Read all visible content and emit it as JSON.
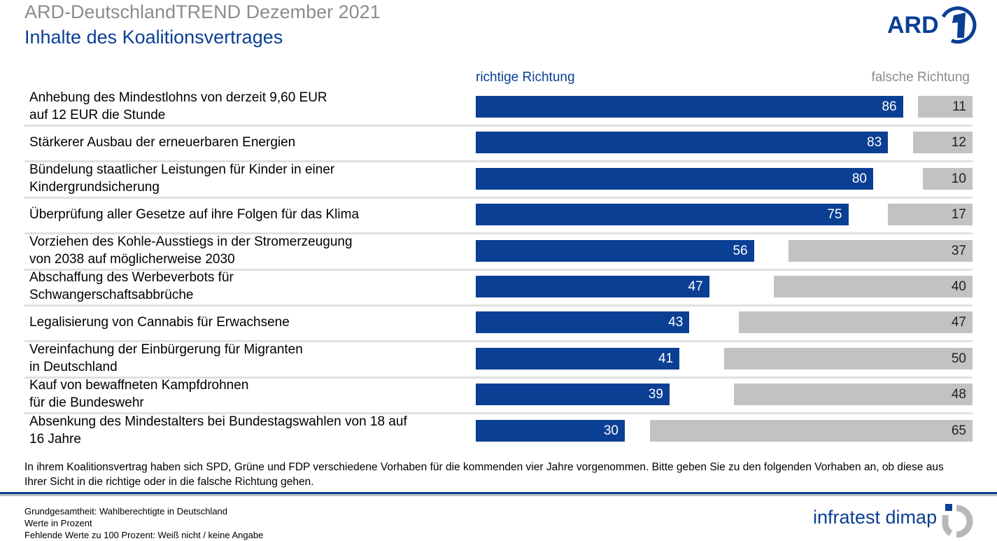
{
  "header": {
    "title": "ARD-DeutschlandTREND Dezember 2021",
    "subtitle": "Inhalte des Koalitionsvertrages",
    "logo_text": "ARD 1"
  },
  "colors": {
    "richtig": "#0a3f94",
    "falsch": "#c2c2c2"
  },
  "chart_data": {
    "type": "bar",
    "orientation": "horizontal",
    "stacked": "diverging",
    "legend": [
      "richtige Richtung",
      "falsche Richtung"
    ],
    "categories": [
      [
        "Anhebung des Mindestlohns von derzeit 9,60 EUR",
        "auf 12 EUR die Stunde"
      ],
      [
        "Stärkerer Ausbau der erneuerbaren Energien"
      ],
      [
        "Bündelung staatlicher Leistungen für Kinder in einer",
        "Kindergrundsicherung"
      ],
      [
        "Überprüfung aller Gesetze auf ihre Folgen für das Klima"
      ],
      [
        "Vorziehen des Kohle-Ausstiegs in der Stromerzeugung",
        "von 2038 auf möglicherweise 2030"
      ],
      [
        "Abschaffung des Werbeverbots für",
        "Schwangerschaftsabbrüche"
      ],
      [
        "Legalisierung von Cannabis für Erwachsene"
      ],
      [
        "Vereinfachung der Einbürgerung für Migranten",
        "in Deutschland"
      ],
      [
        "Kauf von bewaffneten Kampfdrohnen",
        "für die Bundeswehr"
      ],
      [
        "Absenkung des Mindestalters bei Bundestagswahlen von 18 auf",
        "16 Jahre"
      ]
    ],
    "series": [
      {
        "name": "richtige Richtung",
        "values": [
          86,
          83,
          80,
          75,
          56,
          47,
          43,
          41,
          39,
          30
        ]
      },
      {
        "name": "falsche Richtung",
        "values": [
          11,
          12,
          10,
          17,
          37,
          40,
          47,
          50,
          48,
          65
        ]
      }
    ]
  },
  "note": "In ihrem Koalitionsvertrag haben sich SPD, Grüne und FDP verschiedene Vorhaben für die kommenden vier Jahre vorgenommen. Bitte geben Sie zu den folgenden Vorhaben an, ob diese aus Ihrer Sicht in die richtige oder in die falsche Richtung gehen.",
  "footer": {
    "lines": [
      "Grundgesamtheit: Wahlberechtigte in Deutschland",
      "Werte in Prozent",
      "Fehlende Werte zu 100 Prozent: Weiß nicht / keine Angabe"
    ],
    "brand": "infratest dimap"
  }
}
